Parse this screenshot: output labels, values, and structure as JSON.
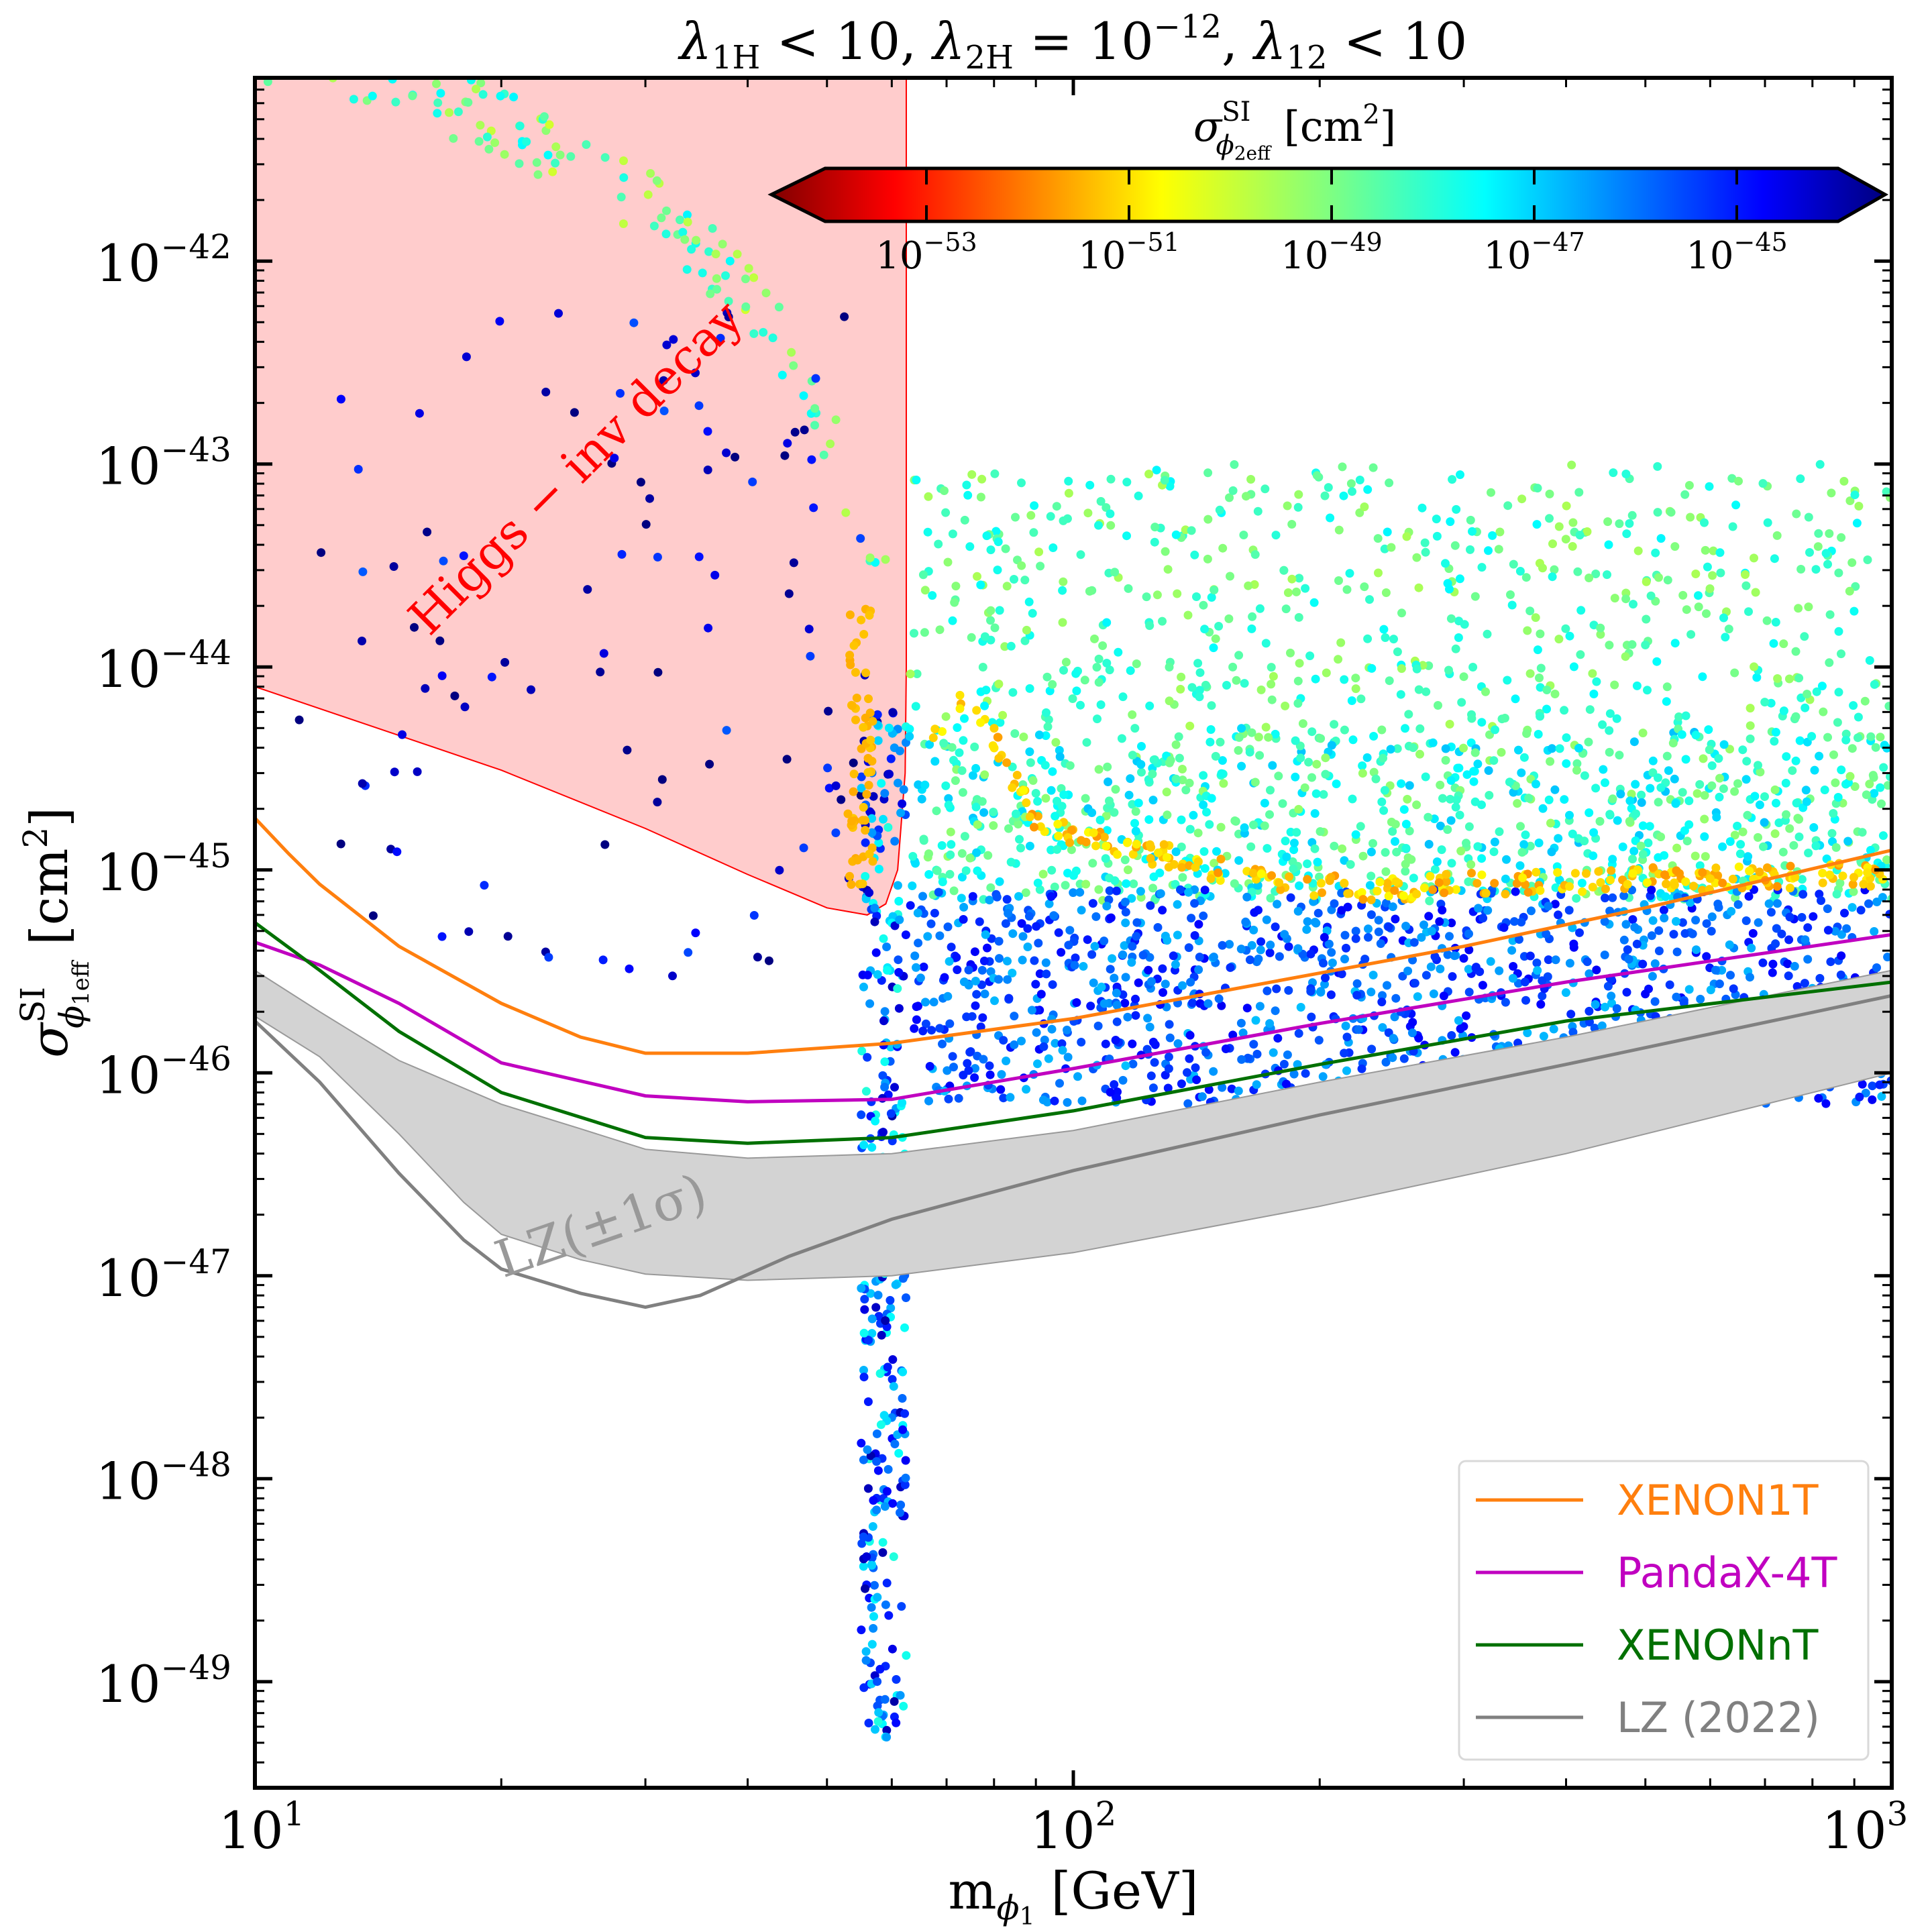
{
  "chart_data": {
    "type": "scatter",
    "title": {
      "l1": "λ",
      "s1": "1H",
      "t1": " < 10,  ",
      "l2": "λ",
      "s2": "2H",
      "t2": " = 10",
      "e2": "−12",
      "t3": ",  ",
      "l3": "λ",
      "s3": "12",
      "t4": " < 10"
    },
    "xlabel": {
      "main": "m",
      "sub": "ϕ",
      "subsub": "1",
      "unit": " [GeV]"
    },
    "ylabel": {
      "main": "σ",
      "sup": "SI",
      "sub": "ϕ",
      "subsub": "1eff",
      "unit": " [cm",
      "unit_exp": "2",
      "unit_close": "]"
    },
    "x_scale": "log",
    "y_scale": "log",
    "xlim": [
      10,
      1000
    ],
    "ylim": [
      3e-50,
      8e-42
    ],
    "x_ticks": [
      {
        "value": 10,
        "base": "10",
        "exp": "1"
      },
      {
        "value": 100,
        "base": "10",
        "exp": "2"
      },
      {
        "value": 1000,
        "base": "10",
        "exp": "3"
      }
    ],
    "y_ticks": [
      {
        "value": 1e-49,
        "base": "10",
        "exp": "−49"
      },
      {
        "value": 1e-48,
        "base": "10",
        "exp": "−48"
      },
      {
        "value": 1e-47,
        "base": "10",
        "exp": "−47"
      },
      {
        "value": 1e-46,
        "base": "10",
        "exp": "−46"
      },
      {
        "value": 1e-45,
        "base": "10",
        "exp": "−45"
      },
      {
        "value": 1e-44,
        "base": "10",
        "exp": "−44"
      },
      {
        "value": 1e-43,
        "base": "10",
        "exp": "−43"
      },
      {
        "value": 1e-42,
        "base": "10",
        "exp": "−42"
      }
    ],
    "colorbar": {
      "title": {
        "main": "σ",
        "sup": "SI",
        "sub": "ϕ",
        "subsub": "2eff",
        "unit": " [cm",
        "unit_exp": "2",
        "unit_close": "]"
      },
      "scale": "log",
      "range": [
        1e-54,
        1e-44
      ],
      "colormap": "jet",
      "extend": "both",
      "ticks": [
        {
          "value": 1e-53,
          "base": "10",
          "exp": "−53"
        },
        {
          "value": 1e-51,
          "base": "10",
          "exp": "−51"
        },
        {
          "value": 1e-49,
          "base": "10",
          "exp": "−49"
        },
        {
          "value": 1e-47,
          "base": "10",
          "exp": "−47"
        },
        {
          "value": 1e-45,
          "base": "10",
          "exp": "−45"
        }
      ]
    },
    "excluded_region": {
      "label": "Higgs − inv decay",
      "color": "#ffcccc",
      "edge_color": "#ff0000",
      "x_max": 62.5,
      "lower_boundary": [
        [
          10,
          8e-45
        ],
        [
          15,
          4.6e-45
        ],
        [
          20,
          3.1e-45
        ],
        [
          30,
          1.6e-45
        ],
        [
          40,
          9.5e-46
        ],
        [
          50,
          6.5e-46
        ],
        [
          56,
          6e-46
        ],
        [
          59,
          6.8e-46
        ],
        [
          61,
          1e-45
        ],
        [
          62.3,
          3e-45
        ],
        [
          62.5,
          1e-44
        ]
      ]
    },
    "series": [
      {
        "name": "XENON1T",
        "color": "#ff7f0e",
        "points": [
          [
            10,
            1.8e-45
          ],
          [
            11,
            1.2e-45
          ],
          [
            12,
            8.5e-46
          ],
          [
            15,
            4.2e-46
          ],
          [
            20,
            2.2e-46
          ],
          [
            25,
            1.5e-46
          ],
          [
            30,
            1.25e-46
          ],
          [
            40,
            1.25e-46
          ],
          [
            60,
            1.4e-46
          ],
          [
            100,
            1.85e-46
          ],
          [
            200,
            3.1e-46
          ],
          [
            300,
            4.2e-46
          ],
          [
            500,
            6.5e-46
          ],
          [
            1000,
            1.25e-45
          ]
        ]
      },
      {
        "name": "PandaX-4T",
        "color": "#c000c0",
        "points": [
          [
            10,
            4.4e-46
          ],
          [
            12,
            3.4e-46
          ],
          [
            15,
            2.2e-46
          ],
          [
            20,
            1.12e-46
          ],
          [
            30,
            7.7e-47
          ],
          [
            40,
            7.2e-47
          ],
          [
            60,
            7.4e-47
          ],
          [
            100,
            1.05e-46
          ],
          [
            200,
            1.75e-46
          ],
          [
            400,
            2.8e-46
          ],
          [
            1000,
            4.8e-46
          ]
        ]
      },
      {
        "name": "XENONnT",
        "color": "#007000",
        "points": [
          [
            10,
            5.5e-46
          ],
          [
            12,
            3.2e-46
          ],
          [
            15,
            1.6e-46
          ],
          [
            20,
            8e-47
          ],
          [
            30,
            4.8e-47
          ],
          [
            40,
            4.5e-47
          ],
          [
            60,
            4.8e-47
          ],
          [
            100,
            6.5e-47
          ],
          [
            200,
            1.1e-46
          ],
          [
            400,
            1.8e-46
          ],
          [
            1000,
            2.8e-46
          ]
        ]
      },
      {
        "name": "LZ (2022)",
        "color": "#808080",
        "points": [
          [
            10,
            1.8e-46
          ],
          [
            12,
            9e-47
          ],
          [
            15,
            3.2e-47
          ],
          [
            18,
            1.5e-47
          ],
          [
            20,
            1.08e-47
          ],
          [
            25,
            8.2e-48
          ],
          [
            30,
            7e-48
          ],
          [
            35,
            8e-48
          ],
          [
            45,
            1.25e-47
          ],
          [
            60,
            1.9e-47
          ],
          [
            100,
            3.3e-47
          ],
          [
            200,
            6.2e-47
          ],
          [
            400,
            1.1e-46
          ],
          [
            1000,
            2.4e-46
          ]
        ]
      }
    ],
    "lz_band": {
      "label": "LZ(±1σ)",
      "color": "#d3d3d3",
      "upper": [
        [
          10,
          3.2e-46
        ],
        [
          12,
          2e-46
        ],
        [
          15,
          1.15e-46
        ],
        [
          20,
          7e-47
        ],
        [
          25,
          5.3e-47
        ],
        [
          30,
          4.2e-47
        ],
        [
          40,
          3.8e-47
        ],
        [
          60,
          4e-47
        ],
        [
          100,
          5.2e-47
        ],
        [
          200,
          9e-47
        ],
        [
          400,
          1.5e-46
        ],
        [
          1000,
          3.2e-46
        ]
      ],
      "lower": [
        [
          10,
          1.9e-46
        ],
        [
          12,
          1.2e-46
        ],
        [
          15,
          5e-47
        ],
        [
          18,
          2.3e-47
        ],
        [
          20,
          1.6e-47
        ],
        [
          25,
          1.2e-47
        ],
        [
          30,
          1.02e-47
        ],
        [
          40,
          9.5e-48
        ],
        [
          60,
          1e-47
        ],
        [
          100,
          1.3e-47
        ],
        [
          200,
          2.2e-47
        ],
        [
          400,
          4e-47
        ],
        [
          1000,
          1e-46
        ]
      ]
    },
    "scatter_clusters": [
      {
        "note": "invisible-decay upper curve",
        "x": [
          10,
          60
        ],
        "curve": [
          [
            10,
            1e-41
          ],
          [
            15,
            6.5e-42
          ],
          [
            20,
            4.1e-42
          ],
          [
            30,
            1.7e-42
          ],
          [
            40,
            6e-43
          ],
          [
            45,
            3e-43
          ],
          [
            50,
            1.3e-43
          ],
          [
            55,
            4e-44
          ]
        ],
        "spread": 0.35,
        "n": 140,
        "c": [
          1e-50,
          3e-48
        ]
      },
      {
        "note": "low-mass blue points",
        "x": [
          11,
          56
        ],
        "y": [
          3e-46,
          6e-43
        ],
        "n": 110,
        "c": [
          1e-46,
          5e-44
        ]
      },
      {
        "note": "resonance stripe",
        "x": [
          55,
          62.5
        ],
        "y": [
          5e-50,
          6e-45
        ],
        "n": 330,
        "c": [
          1e-48,
          5e-45
        ]
      },
      {
        "note": "orange resonance streak",
        "x": [
          53,
          57
        ],
        "y": [
          8e-46,
          2e-44
        ],
        "n": 60,
        "c": [
          5e-52,
          1e-51
        ]
      },
      {
        "note": "upper green cloud",
        "x": [
          63,
          1000
        ],
        "y": [
          5e-45,
          1e-43
        ],
        "n": 600,
        "c": [
          3e-50,
          3e-48
        ]
      },
      {
        "note": "middle green-cyan cloud",
        "x": [
          63,
          1000
        ],
        "y": [
          7e-46,
          5e-45
        ],
        "n": 900,
        "c": [
          5e-50,
          1e-47
        ]
      },
      {
        "note": "lower blue cloud",
        "x": [
          63,
          1000
        ],
        "y": [
          7e-47,
          8e-46
        ],
        "n": 1200,
        "c": [
          1e-47,
          1e-45
        ]
      },
      {
        "note": "yellow-orange ridge",
        "x": [
          65,
          1000
        ],
        "curve": [
          [
            65,
            4e-45
          ],
          [
            75,
            7e-45
          ],
          [
            90,
            1.6e-45
          ],
          [
            120,
            1.2e-45
          ],
          [
            160,
            9e-46
          ],
          [
            220,
            7.5e-46
          ],
          [
            300,
            8e-46
          ],
          [
            500,
            8.5e-46
          ],
          [
            1000,
            9e-46
          ]
        ],
        "spread": 0.12,
        "n": 260,
        "c": [
          3e-52,
          3e-51
        ]
      }
    ],
    "legend": {
      "position": "lower-right",
      "entries": [
        "XENON1T",
        "PandaX-4T",
        "XENONnT",
        "LZ (2022)"
      ]
    }
  }
}
